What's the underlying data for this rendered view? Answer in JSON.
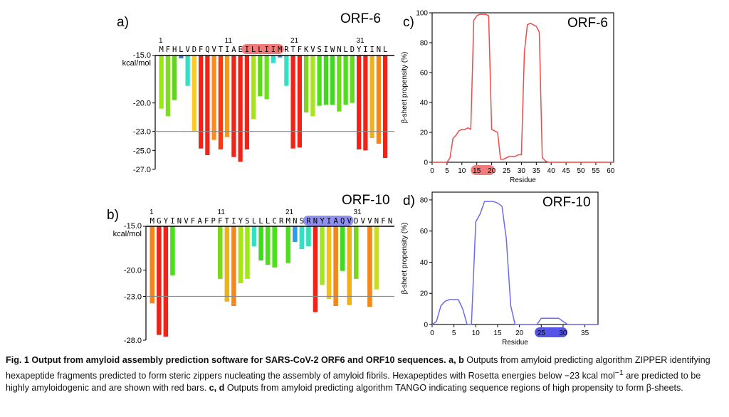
{
  "figure": {
    "panels": {
      "a": "a)",
      "b": "b)",
      "c": "c)",
      "d": "d)"
    },
    "unit_top": "-15.0",
    "unit_bottom": "kcal/mol"
  },
  "chart_data": [
    {
      "panel": "a",
      "type": "bar",
      "title": "ORF-6",
      "ylabel": "kcal/mol",
      "ylim": [
        -27.0,
        -15.0
      ],
      "yticks": [
        -15.0,
        -20.0,
        -23.0,
        -25.0,
        -27.0
      ],
      "threshold": -23.0,
      "sequence": [
        "M",
        "F",
        "H",
        "L",
        "V",
        "D",
        "F",
        "Q",
        "V",
        "T",
        "I",
        "A",
        "E",
        "I",
        "L",
        "L",
        "I",
        "I",
        "M",
        "R",
        "T",
        "F",
        "K",
        "V",
        "S",
        "I",
        "W",
        "N",
        "L",
        "D",
        "Y",
        "I",
        "I",
        "N",
        "L"
      ],
      "residue_ticks": [
        1,
        11,
        21,
        31
      ],
      "highlight": {
        "start": 14,
        "end": 19,
        "color": "#f07b7b"
      },
      "categories": [
        "1",
        "2",
        "3",
        "4",
        "5",
        "6",
        "7",
        "8",
        "9",
        "10",
        "11",
        "12",
        "13",
        "14",
        "15",
        "16",
        "17",
        "18",
        "19",
        "20",
        "21",
        "22",
        "23",
        "24",
        "25",
        "26",
        "27",
        "28",
        "29",
        "30"
      ],
      "values": [
        -20.6,
        -21.4,
        -19.7,
        -15.3,
        -18.2,
        -23.0,
        -24.8,
        -25.5,
        -23.9,
        -24.9,
        -23.6,
        -25.7,
        -26.2,
        -24.9,
        -21.7,
        -19.3,
        -19.6,
        -15.8,
        -15.2,
        -18.2,
        -24.8,
        -24.7,
        -21.0,
        -21.4,
        -20.3,
        -20.2,
        -20.2,
        -20.9,
        -20.2,
        -20.0
      ],
      "bar_colors": [
        "#9be619",
        "#77e11a",
        "#60d619",
        "#2b7de8",
        "#2ee3c4",
        "#ffca1a",
        "#f02318",
        "#f02318",
        "#ff8c1a",
        "#f23a14",
        "#f59a14",
        "#f02318",
        "#f02318",
        "#f02318",
        "#a8e31a",
        "#5cdb14",
        "#6be31a",
        "#2fe0d0",
        "#2b7de8",
        "#2ee3c4",
        "#f02318",
        "#f02318",
        "#7bd81a",
        "#a8e61a",
        "#4ce01a",
        "#3cdc1a",
        "#3cdc1a",
        "#6cdc1a",
        "#4ce01a",
        "#60dc1a"
      ],
      "extra_values": [
        -24.9,
        -25.0,
        -23.7,
        -24.3,
        -25.8
      ],
      "extra_colors": [
        "#f02318",
        "#f02318",
        "#f0b21a",
        "#f6861a",
        "#f02318"
      ]
    },
    {
      "panel": "b",
      "type": "bar",
      "title": "ORF-10",
      "ylabel": "kcal/mol",
      "ylim": [
        -28.0,
        -15.0
      ],
      "yticks": [
        -15.0,
        -20.0,
        -23.0,
        -28.0
      ],
      "threshold": -23.0,
      "sequence": [
        "M",
        "G",
        "Y",
        "I",
        "N",
        "V",
        "F",
        "A",
        "F",
        "P",
        "F",
        "T",
        "I",
        "Y",
        "S",
        "L",
        "L",
        "L",
        "C",
        "R",
        "M",
        "N",
        "S",
        "R",
        "N",
        "Y",
        "I",
        "A",
        "Q",
        "V",
        "D",
        "V",
        "V",
        "N",
        "F",
        "N"
      ],
      "residue_ticks": [
        1,
        11,
        21,
        31
      ],
      "highlight": {
        "start": 24,
        "end": 30,
        "color": "#8f8ff0"
      },
      "values": [
        -23.8,
        -27.4,
        -27.6,
        -20.6,
        null,
        null,
        null,
        null,
        null,
        null,
        -21.0,
        -23.6,
        -24.1,
        -21.5,
        -21.0,
        -17.3,
        -18.9,
        -19.4,
        -19.7,
        null,
        -19.2,
        -16.8,
        -17.6,
        -17.3,
        -24.8,
        -21.7,
        -23.3,
        -24.1,
        -20.1,
        -24.0,
        -21.0,
        null,
        -24.2,
        -22.2
      ],
      "bar_colors": [
        "#f6841a",
        "#f02318",
        "#f02318",
        "#4ce01a",
        null,
        null,
        null,
        null,
        null,
        null,
        "#7bd81a",
        "#f0b21a",
        "#f6861a",
        "#a8e61a",
        "#9fe81a",
        "#2ee3c4",
        "#3cdc1a",
        "#4ce01a",
        "#4ce01a",
        null,
        "#4ce01a",
        "#2e9de8",
        "#2ee3c4",
        "#30e0b8",
        "#f02318",
        "#9fe81a",
        "#f0c21a",
        "#f6861a",
        "#3cdc1a",
        "#f0b21a",
        "#7bd81a",
        null,
        "#f6861a",
        "#c8e01a"
      ]
    },
    {
      "panel": "c",
      "type": "line",
      "title": "ORF-6",
      "xlabel": "Residue",
      "ylabel": "β-sheet propensity (%)",
      "xlim": [
        0,
        61
      ],
      "ylim": [
        0,
        100
      ],
      "xticks": [
        0,
        5,
        10,
        15,
        20,
        25,
        30,
        35,
        40,
        45,
        50,
        55,
        60
      ],
      "yticks": [
        0,
        20,
        40,
        60,
        80,
        100
      ],
      "highlight": {
        "start": 13,
        "end": 21,
        "color": "#f07b7b"
      },
      "color": "#f24a4a",
      "x": [
        0,
        4,
        5,
        6,
        7,
        8,
        9,
        10,
        11,
        12,
        13,
        14,
        15,
        16,
        17,
        18,
        19,
        20,
        21,
        22,
        23,
        24,
        25,
        26,
        27,
        28,
        29,
        30,
        31,
        32,
        33,
        34,
        35,
        36,
        37,
        38,
        39,
        40,
        61
      ],
      "y": [
        0,
        0,
        0,
        3,
        16,
        18,
        21,
        22,
        22,
        23,
        22,
        95,
        98,
        99,
        99,
        99,
        98,
        22,
        21,
        20,
        2,
        2,
        3,
        4,
        4,
        4,
        5,
        5,
        74,
        92,
        93,
        92,
        91,
        87,
        3,
        1,
        0,
        0,
        0
      ]
    },
    {
      "panel": "d",
      "type": "line",
      "title": "ORF-10",
      "xlabel": "Residue",
      "ylabel": "β-sheet propensity (%)",
      "xlim": [
        0,
        38
      ],
      "ylim": [
        0,
        85
      ],
      "xticks": [
        0,
        5,
        10,
        15,
        20,
        25,
        30,
        35
      ],
      "yticks": [
        0,
        20,
        40,
        60,
        80
      ],
      "highlight": {
        "start": 23.5,
        "end": 31,
        "color": "#5555e8"
      },
      "color": "#6b6bf0",
      "x": [
        0,
        1,
        2,
        3,
        4,
        5,
        6,
        7,
        8,
        9,
        10,
        11,
        12,
        13,
        14,
        15,
        16,
        17,
        18,
        19,
        20,
        21,
        22,
        23,
        24,
        25,
        26,
        27,
        28,
        29,
        30,
        31,
        32,
        33,
        34,
        35,
        36,
        37,
        38
      ],
      "y": [
        0,
        2,
        12,
        15,
        16,
        16,
        16,
        10,
        0,
        0,
        66,
        71,
        79,
        79,
        79,
        78,
        76,
        55,
        12,
        0,
        0,
        0,
        0,
        0,
        0,
        4,
        4,
        4,
        4,
        4,
        2,
        0,
        0,
        0,
        0,
        0,
        0,
        0,
        0
      ]
    }
  ],
  "caption": {
    "bold": "Fig. 1 Output from amyloid assembly prediction software for SARS-CoV-2 ORF6 and ORF10 sequences. a, b",
    "text1": " Outputs from amyloid predicting algorithm ZIPPER identifying hexapeptide fragments predicted to form steric zippers nucleating the assembly of amyloid fibrils. Hexapeptides with Rosetta energies below −23 kcal mol",
    "sup": "−1",
    "text2": " are predicted to be highly amyloidogenic and are shown with red bars. ",
    "bold2": "c, d",
    "text3": " Outputs from amyloid predicting algorithm TANGO indicating sequence regions of high propensity to form β-sheets."
  }
}
